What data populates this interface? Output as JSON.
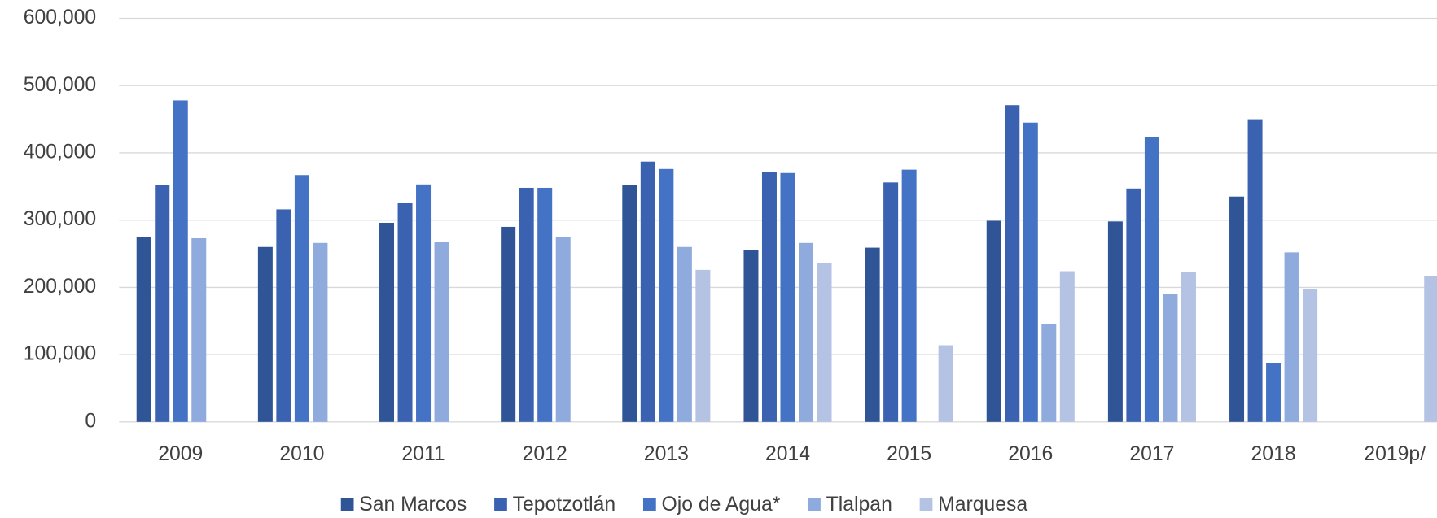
{
  "chart_data": {
    "type": "bar",
    "categories": [
      "2009",
      "2010",
      "2011",
      "2012",
      "2013",
      "2014",
      "2015",
      "2016",
      "2017",
      "2018",
      "2019p/"
    ],
    "series": [
      {
        "name": "San Marcos",
        "color": "#2f5597",
        "values": [
          275000,
          260000,
          296000,
          290000,
          352000,
          255000,
          259000,
          299000,
          298000,
          335000,
          null
        ]
      },
      {
        "name": "Tepotzotlán",
        "color": "#3a62b0",
        "values": [
          352000,
          316000,
          325000,
          348000,
          387000,
          372000,
          356000,
          471000,
          347000,
          450000,
          null
        ]
      },
      {
        "name": "Ojo de Agua*",
        "color": "#4472c4",
        "values": [
          478000,
          367000,
          353000,
          348000,
          376000,
          370000,
          375000,
          445000,
          423000,
          87000,
          null
        ]
      },
      {
        "name": "Tlalpan",
        "color": "#8faadc",
        "values": [
          273000,
          266000,
          267000,
          275000,
          260000,
          266000,
          null,
          146000,
          190000,
          252000,
          null
        ]
      },
      {
        "name": "Marquesa",
        "color": "#b4c2e4",
        "values": [
          null,
          null,
          null,
          null,
          226000,
          236000,
          114000,
          224000,
          223000,
          197000,
          217000
        ]
      }
    ],
    "ylim": [
      0,
      600000
    ],
    "yticks": [
      0,
      {
        "value": 100000,
        "label": "100,000"
      },
      {
        "value": 200000,
        "label": "200,000"
      },
      {
        "value": 300000,
        "label": "300,000"
      },
      {
        "value": 400000,
        "label": "400,000"
      },
      {
        "value": 500000,
        "label": "500,000"
      },
      {
        "value": 600000,
        "label": "600,000"
      }
    ],
    "grid": true,
    "legend": "bottom"
  }
}
